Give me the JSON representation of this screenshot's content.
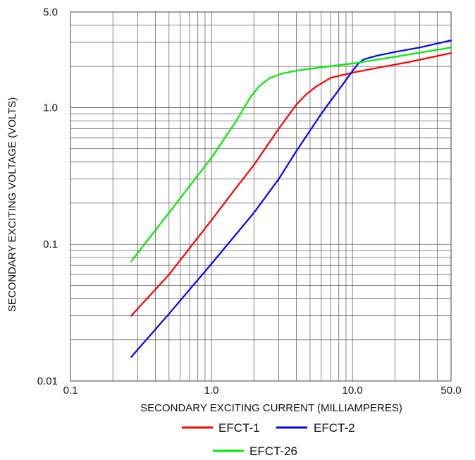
{
  "chart_data": {
    "type": "line",
    "xscale": "log",
    "yscale": "log",
    "xlim": [
      0.1,
      50.0
    ],
    "ylim": [
      0.01,
      5.0
    ],
    "grid": true,
    "xlabel": "SECONDARY EXCITING CURRENT (MILLIAMPERES)",
    "ylabel": "SECONDARY EXCITING VOLTAGE (VOLTS)",
    "xtick_labels": [
      {
        "value": 0.1,
        "label": "0.1"
      },
      {
        "value": 1.0,
        "label": "1.0"
      },
      {
        "value": 10.0,
        "label": "10.0"
      },
      {
        "value": 50.0,
        "label": "50.0"
      }
    ],
    "ytick_labels": [
      {
        "value": 0.01,
        "label": "0.01"
      },
      {
        "value": 0.1,
        "label": "0.1"
      },
      {
        "value": 1.0,
        "label": "1.0"
      },
      {
        "value": 5.0,
        "label": "5.0"
      }
    ],
    "legend_position": "bottom-center",
    "series": [
      {
        "name": "EFCT-1",
        "color": "#ff0000",
        "x": [
          0.27,
          0.5,
          1.0,
          1.5,
          2.0,
          3.0,
          4.0,
          4.7,
          5.5,
          7.0,
          10.0,
          15.0,
          25.0,
          50.0
        ],
        "y": [
          0.03,
          0.06,
          0.15,
          0.26,
          0.38,
          0.7,
          1.05,
          1.25,
          1.42,
          1.65,
          1.8,
          1.95,
          2.15,
          2.5
        ]
      },
      {
        "name": "EFCT-2",
        "color": "#0000ff",
        "x": [
          0.27,
          0.5,
          1.0,
          2.0,
          3.0,
          4.0,
          6.0,
          8.0,
          10.0,
          11.0,
          12.0,
          15.0,
          20.0,
          30.0,
          50.0
        ],
        "y": [
          0.015,
          0.031,
          0.072,
          0.17,
          0.3,
          0.48,
          0.9,
          1.35,
          1.85,
          2.1,
          2.25,
          2.4,
          2.55,
          2.75,
          3.1
        ]
      },
      {
        "name": "EFCT-26",
        "color": "#00ee00",
        "x": [
          0.27,
          0.5,
          1.0,
          1.5,
          1.9,
          2.2,
          2.6,
          3.2,
          4.0,
          6.0,
          10.0,
          20.0,
          50.0
        ],
        "y": [
          0.075,
          0.17,
          0.43,
          0.8,
          1.2,
          1.45,
          1.65,
          1.78,
          1.86,
          1.97,
          2.1,
          2.35,
          2.75
        ]
      }
    ]
  }
}
